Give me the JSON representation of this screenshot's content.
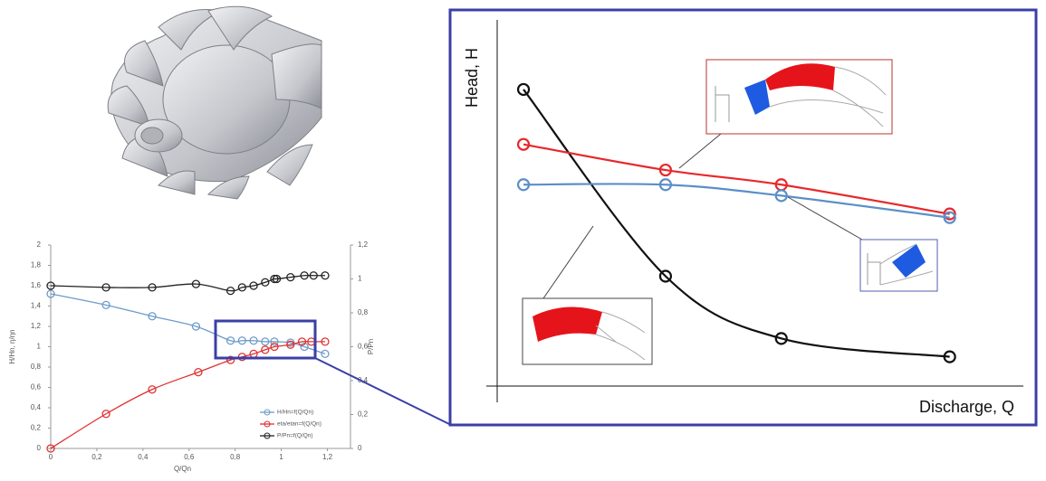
{
  "chart_data": [
    {
      "type": "line",
      "x_label": "Q/Qn",
      "y_label": "H/Hn, η/ηn",
      "y2_label": "P/Pn",
      "xlim": [
        0,
        1.3
      ],
      "xticks": [
        0,
        {
          "value": 0.2,
          "label": "0,2"
        },
        {
          "value": 0.4,
          "label": "0,4"
        },
        {
          "value": 0.6,
          "label": "0,6"
        },
        {
          "value": 0.8,
          "label": "0,8"
        },
        1,
        {
          "value": 1.2,
          "label": "1,2"
        }
      ],
      "ylim": [
        0,
        2
      ],
      "yticks": [
        0,
        {
          "value": 0.2,
          "label": "0,2"
        },
        {
          "value": 0.4,
          "label": "0,4"
        },
        {
          "value": 0.6,
          "label": "0,6"
        },
        {
          "value": 0.8,
          "label": "0,8"
        },
        1,
        {
          "value": 1.2,
          "label": "1,2"
        },
        {
          "value": 1.4,
          "label": "1,4"
        },
        {
          "value": 1.6,
          "label": "1,6"
        },
        {
          "value": 1.8,
          "label": "1,8"
        },
        2
      ],
      "y2lim": [
        0,
        1.2
      ],
      "y2ticks": [
        0,
        {
          "value": 0.2,
          "label": "0,2"
        },
        {
          "value": 0.4,
          "label": "0,4"
        },
        {
          "value": 0.6,
          "label": "0,6"
        },
        {
          "value": 0.8,
          "label": "0,8"
        },
        1,
        {
          "value": 1.2,
          "label": "1,2"
        }
      ],
      "series": [
        {
          "name": "H/Hn=f(Q/Qn)",
          "color": "#6d9bc9",
          "x": [
            0,
            0.24,
            0.44,
            0.63,
            0.78,
            0.83,
            0.88,
            0.93,
            0.97,
            1.04,
            1.1,
            1.19
          ],
          "values": [
            1.52,
            1.41,
            1.3,
            1.2,
            1.06,
            1.06,
            1.06,
            1.05,
            1.05,
            1.04,
            1.0,
            0.93
          ]
        },
        {
          "name": "eta/etan=f(Q/Qn)",
          "color": "#e03030",
          "x": [
            0,
            0.24,
            0.44,
            0.64,
            0.78,
            0.83,
            0.88,
            0.93,
            0.97,
            1.04,
            1.09,
            1.13,
            1.19
          ],
          "values": [
            0,
            0.34,
            0.58,
            0.75,
            0.87,
            0.9,
            0.93,
            0.97,
            1.0,
            1.02,
            1.05,
            1.05,
            1.05
          ]
        },
        {
          "name": "P/Pn=f(Q/Qn)",
          "color": "#222222",
          "axis": "y2",
          "x": [
            0,
            0.24,
            0.44,
            0.63,
            0.78,
            0.83,
            0.88,
            0.93,
            0.97,
            0.98,
            1.04,
            1.1,
            1.14,
            1.19
          ],
          "values": [
            0.96,
            0.95,
            0.95,
            0.97,
            0.93,
            0.95,
            0.96,
            0.98,
            1.0,
            1.0,
            1.01,
            1.02,
            1.02,
            1.02
          ]
        }
      ]
    },
    {
      "type": "line",
      "x_label": "Discharge, Q",
      "y_label": "Head, H",
      "xlim": [
        0,
        10
      ],
      "ylim": [
        0,
        10
      ],
      "series": [
        {
          "color": "#111111",
          "x": [
            0.5,
            3.2,
            5.4,
            8.6
          ],
          "values": [
            8.1,
            3.0,
            1.3,
            0.8
          ]
        },
        {
          "color": "#e8282b",
          "x": [
            0.5,
            3.2,
            5.4,
            8.6
          ],
          "values": [
            6.6,
            5.9,
            5.5,
            4.7
          ]
        },
        {
          "color": "#5b8fc7",
          "x": [
            0.5,
            3.2,
            5.4,
            8.6
          ],
          "values": [
            5.5,
            5.5,
            5.2,
            4.6
          ]
        }
      ]
    }
  ]
}
